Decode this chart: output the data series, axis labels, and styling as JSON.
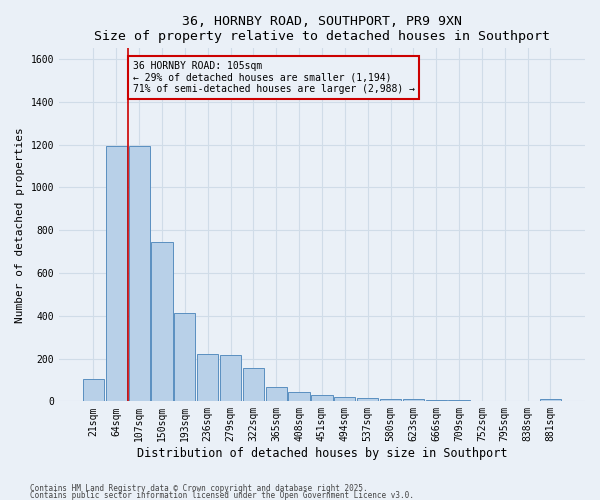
{
  "title1": "36, HORNBY ROAD, SOUTHPORT, PR9 9XN",
  "title2": "Size of property relative to detached houses in Southport",
  "xlabel": "Distribution of detached houses by size in Southport",
  "ylabel": "Number of detached properties",
  "categories": [
    "21sqm",
    "64sqm",
    "107sqm",
    "150sqm",
    "193sqm",
    "236sqm",
    "279sqm",
    "322sqm",
    "365sqm",
    "408sqm",
    "451sqm",
    "494sqm",
    "537sqm",
    "580sqm",
    "623sqm",
    "666sqm",
    "709sqm",
    "752sqm",
    "795sqm",
    "838sqm",
    "881sqm"
  ],
  "values": [
    105,
    1195,
    1195,
    745,
    415,
    220,
    215,
    155,
    65,
    45,
    30,
    20,
    15,
    10,
    10,
    8,
    5,
    0,
    0,
    0,
    10
  ],
  "bar_color": "#b8d0e8",
  "bar_edge_color": "#5a8fc0",
  "vline_color": "#cc0000",
  "annotation_text": "36 HORNBY ROAD: 105sqm\n← 29% of detached houses are smaller (1,194)\n71% of semi-detached houses are larger (2,988) →",
  "annotation_box_color": "#cc0000",
  "ylim": [
    0,
    1650
  ],
  "yticks": [
    0,
    200,
    400,
    600,
    800,
    1000,
    1200,
    1400,
    1600
  ],
  "footer1": "Contains HM Land Registry data © Crown copyright and database right 2025.",
  "footer2": "Contains public sector information licensed under the Open Government Licence v3.0.",
  "bg_color": "#eaf0f7",
  "grid_color": "#d0dce8",
  "title_fontsize": 9.5,
  "tick_fontsize": 7,
  "ylabel_fontsize": 8,
  "xlabel_fontsize": 8.5
}
